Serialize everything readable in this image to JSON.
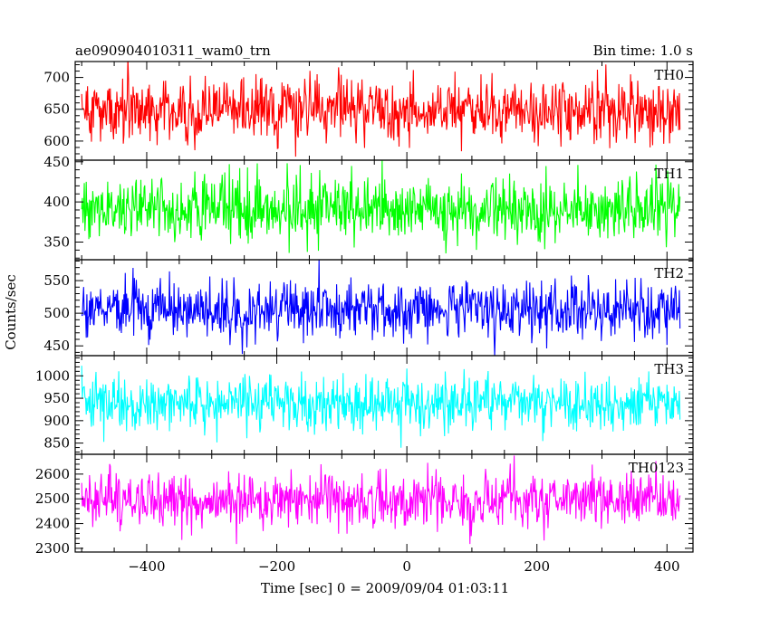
{
  "header": {
    "title": "ae090904010311_wam0_trn",
    "bin_time": "Bin time: 1.0 s"
  },
  "axes": {
    "ylabel": "Counts/sec",
    "xlabel": "Time [sec] 0 = 2009/09/04 01:03:11"
  },
  "chart_data": {
    "type": "line",
    "title": "ae090904010311_wam0_trn",
    "subtitle": "Bin time: 1.0 s",
    "xlabel": "Time [sec] 0 = 2009/09/04 01:03:11",
    "ylabel": "Counts/sec",
    "xlim": [
      -510,
      440
    ],
    "x_ticks": [
      -400,
      -200,
      0,
      200,
      400
    ],
    "x_range_data": [
      -500,
      420
    ],
    "bin_time_s": 1.0,
    "grid": false,
    "panels": [
      {
        "name": "TH0",
        "color": "#ff0000",
        "ylim": [
          570,
          725
        ],
        "y_ticks": [
          600,
          650,
          700
        ],
        "mean": 648,
        "noise_sigma": 26
      },
      {
        "name": "TH1",
        "color": "#00ff00",
        "ylim": [
          328,
          452
        ],
        "y_ticks": [
          350,
          400,
          450
        ],
        "mean": 390,
        "noise_sigma": 20
      },
      {
        "name": "TH2",
        "color": "#0000ff",
        "ylim": [
          435,
          582
        ],
        "y_ticks": [
          450,
          500,
          550
        ],
        "mean": 505,
        "noise_sigma": 22
      },
      {
        "name": "TH3",
        "color": "#00ffff",
        "ylim": [
          825,
          1045
        ],
        "y_ticks": [
          850,
          900,
          950,
          1000
        ],
        "mean": 940,
        "noise_sigma": 30
      },
      {
        "name": "TH0123",
        "color": "#ff00ff",
        "ylim": [
          2285,
          2680
        ],
        "y_ticks": [
          2300,
          2400,
          2500,
          2600
        ],
        "mean": 2495,
        "noise_sigma": 55
      }
    ]
  }
}
